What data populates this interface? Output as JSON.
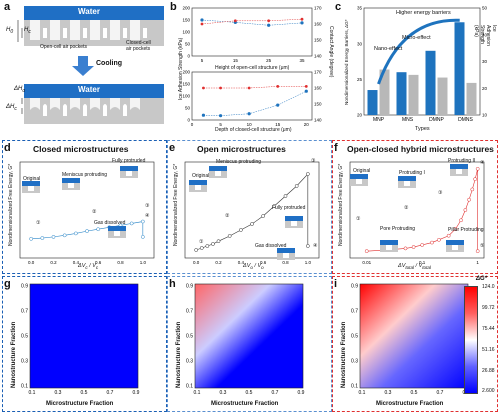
{
  "panels": {
    "a": {
      "label": "a",
      "water_top": "Water",
      "water_bottom": "Water",
      "h0": "H",
      "h0_sub": "0",
      "hc": "H",
      "hc_sub": "c",
      "open_pockets": "Open-cell air pockets",
      "closed_pockets_1": "Closed-cell",
      "closed_pockets_2": "air pockets",
      "cooling": "Cooling",
      "delta_ho": "ΔH",
      "delta_ho_sub": "o",
      "delta_hc": "ΔH",
      "delta_hc_sub": "c"
    },
    "b": {
      "label": "b",
      "xlabel_top": "Height of open-cell structure (μm)",
      "xlabel_bottom": "Depth of closed-cell structure (μm)",
      "ylabel_left": "Ice Adhesion Strength (kPa)",
      "ylabel_right": "Contact Angle (degree)"
    },
    "c": {
      "label": "c",
      "ylabel_left": "Nondimensionalized Energy Barriers, ΔG*",
      "ylabel_right": "Ice Adhesion Strength (kPa)",
      "xlabel": "Types",
      "ann_higher": "Higher energy barriers",
      "ann_micro": "Micro-effect",
      "ann_nano": "Nano-effect"
    },
    "d": {
      "label": "d",
      "title": "Closed microstructures",
      "ylabel": "Nondimensionalized Free Energy, G*",
      "xlabel": "ΔV",
      "xlabel_sub": "c",
      "xlabel_den": " / V",
      "xlabel_den_sub": "c",
      "s_original": "Original",
      "s_meniscus": "Meniscus protruding",
      "s_full": "Fully protruded",
      "s_gas": "Gas dissolved",
      "n1": "①",
      "n2": "②",
      "n3": "③",
      "n4": "④"
    },
    "e": {
      "label": "e",
      "title": "Open microstructures",
      "ylabel": "Nondimensionalized Free Energy, G*",
      "xlabel": "ΔV",
      "xlabel_sub": "o",
      "xlabel_den": " / V",
      "xlabel_den_sub": "o",
      "s_original": "Original",
      "s_meniscus": "Meniscus protruding",
      "s_full": "Fully protruded",
      "s_gas": "Gas dissolved",
      "n1": "①",
      "n2": "②",
      "n3": "③",
      "n4": "④"
    },
    "f": {
      "label": "f",
      "title": "Open-closed hybrid microstructures",
      "ylabel": "Nondimensionalized Free Energy, G*",
      "xlabel": "ΔV",
      "xlabel_sub": "total",
      "xlabel_den": " / V",
      "xlabel_den_sub": "total",
      "s_original": "Original",
      "s_prot1": "Protruding I",
      "s_prot2": "Protruding II",
      "s_pore": "Pore Protruding",
      "s_pillar": "Pillar Protruding",
      "n1": "①",
      "n2": "②",
      "n3": "③",
      "n4": "④",
      "n5": "⑤"
    },
    "g": {
      "label": "g",
      "ylabel": "Nanostructure Fraction",
      "xlabel": "Microstructure Fraction"
    },
    "h": {
      "label": "h",
      "ylabel": "Nanostructure Fraction",
      "xlabel": "Microstructure Fraction"
    },
    "i": {
      "label": "i",
      "ylabel": "Nanostructure Fraction",
      "xlabel": "Microstructure Fraction"
    },
    "colorbar": {
      "title": "ΔG*",
      "ticks": [
        "124.0",
        "99.72",
        "75.44",
        "51.16",
        "26.88",
        "2.600"
      ]
    }
  },
  "colors": {
    "water": "#1f6fc5",
    "bar_blue": "#1e73be",
    "bar_gray": "#b8b8b8",
    "red": "#e03030",
    "dashed_d": "#1a5fb4",
    "dashed_e": "#5a8fd0",
    "dashed_f": "#e03030"
  },
  "chart_data": [
    {
      "id": "b_top",
      "type": "scatter",
      "x": [
        5,
        15,
        25,
        35
      ],
      "xticks": [
        "5",
        "15",
        "25",
        "35"
      ],
      "xlim": [
        2,
        38
      ],
      "series": [
        {
          "axis": "left",
          "values": [
            150,
            140,
            128,
            138
          ]
        },
        {
          "axis": "right",
          "values": [
            160,
            162,
            162,
            163
          ]
        }
      ],
      "ylim_left": [
        0,
        200
      ],
      "yticks_left": [
        "0",
        "50",
        "100",
        "150",
        "200"
      ],
      "ylim_right": [
        140,
        170
      ],
      "yticks_right": [
        "140",
        "150",
        "160",
        "170"
      ]
    },
    {
      "id": "b_bottom",
      "type": "scatter",
      "x": [
        2,
        5,
        10,
        15,
        20
      ],
      "xticks": [
        "0",
        "5",
        "10",
        "15",
        "20"
      ],
      "xlim": [
        0,
        21
      ],
      "series": [
        {
          "axis": "left",
          "values": [
            20,
            18,
            26,
            62,
            120
          ]
        },
        {
          "axis": "right",
          "values": [
            160,
            160,
            160,
            161,
            161
          ]
        }
      ],
      "ylim_left": [
        0,
        200
      ],
      "yticks_left": [
        "0",
        "50",
        "100",
        "150",
        "200"
      ],
      "ylim_right": [
        140,
        170
      ],
      "yticks_right": [
        "140",
        "150",
        "160",
        "170"
      ]
    },
    {
      "id": "c",
      "type": "bar",
      "categories": [
        "MNP",
        "MNS",
        "DMNP",
        "DMNS"
      ],
      "series": [
        {
          "axis": "left",
          "values": [
            23.5,
            26,
            29,
            33
          ]
        },
        {
          "axis": "right",
          "values": [
            27,
            25,
            24,
            22
          ]
        }
      ],
      "ylim_left": [
        20,
        35
      ],
      "yticks_left": [
        "20",
        "25",
        "30",
        "35"
      ],
      "ylim_right": [
        10,
        50
      ],
      "yticks_right": [
        "10",
        "20",
        "30",
        "40",
        "50"
      ]
    },
    {
      "id": "d",
      "type": "line",
      "x": [
        0,
        0.1,
        0.2,
        0.3,
        0.4,
        0.5,
        0.6,
        0.7,
        0.8,
        0.9,
        1.0,
        1.0
      ],
      "values": [
        0,
        0.2,
        0.5,
        0.9,
        1.4,
        2.0,
        2.5,
        3.0,
        3.5,
        4.0,
        4.5,
        0.5
      ],
      "xlim": [
        -0.1,
        1.1
      ],
      "xticks": [
        "0.0",
        "0.2",
        "0.4",
        "0.6",
        "0.8",
        "1.0"
      ],
      "ylim": [
        -5,
        20
      ]
    },
    {
      "id": "e",
      "type": "line",
      "x": [
        0,
        0.05,
        0.1,
        0.15,
        0.2,
        0.3,
        0.4,
        0.5,
        0.6,
        0.7,
        0.8,
        0.9,
        1.0,
        1.0
      ],
      "values": [
        0,
        0.5,
        1.0,
        1.5,
        2.2,
        3.5,
        5.0,
        6.5,
        8.5,
        11,
        13.5,
        16,
        19,
        1
      ],
      "xlim": [
        -0.1,
        1.1
      ],
      "xticks": [
        "0.0",
        "0.2",
        "0.4",
        "0.6",
        "0.8",
        "1.0"
      ],
      "ylim": [
        -2,
        22
      ]
    },
    {
      "id": "f",
      "type": "line",
      "log_x": true,
      "x": [
        0.01,
        0.02,
        0.03,
        0.05,
        0.07,
        0.1,
        0.15,
        0.2,
        0.3,
        0.4,
        0.5,
        0.6,
        0.7,
        0.8,
        0.9,
        1.0,
        1.0
      ],
      "values": [
        0,
        0.3,
        0.5,
        0.8,
        1.2,
        1.8,
        2.5,
        3.3,
        4.5,
        6.5,
        9,
        12,
        15,
        18,
        21,
        24,
        0
      ],
      "xticks": [
        "0.01",
        "0.1",
        "1"
      ],
      "ylim": [
        -2,
        26
      ]
    },
    {
      "id": "g",
      "type": "heatmap",
      "xticks": [
        "0.1",
        "0.3",
        "0.5",
        "0.7",
        "0.9"
      ],
      "yticks": [
        "0.1",
        "0.3",
        "0.5",
        "0.7",
        "0.9"
      ],
      "range": [
        2.6,
        124.0
      ],
      "values": [
        [
          2.6
        ]
      ]
    },
    {
      "id": "h",
      "type": "heatmap",
      "xticks": [
        "0.1",
        "0.3",
        "0.5",
        "0.7",
        "0.9"
      ],
      "yticks": [
        "0.1",
        "0.3",
        "0.5",
        "0.7",
        "0.9"
      ],
      "range": [
        2.6,
        124.0
      ],
      "values": [
        [
          2.6,
          2.6,
          2.6
        ],
        [
          51.16,
          26.88,
          2.6
        ],
        [
          99.72,
          51.16,
          26.88
        ]
      ]
    },
    {
      "id": "i",
      "type": "heatmap",
      "xticks": [
        "0.1",
        "0.3",
        "0.5",
        "0.7",
        "0.9"
      ],
      "yticks": [
        "0.1",
        "0.3",
        "0.5",
        "0.7",
        "0.9"
      ],
      "range": [
        2.6,
        124.0
      ],
      "values": [
        [
          2.6,
          2.6,
          2.6
        ],
        [
          75.44,
          51.16,
          26.88
        ],
        [
          124.0,
          75.44,
          51.16
        ]
      ]
    }
  ]
}
